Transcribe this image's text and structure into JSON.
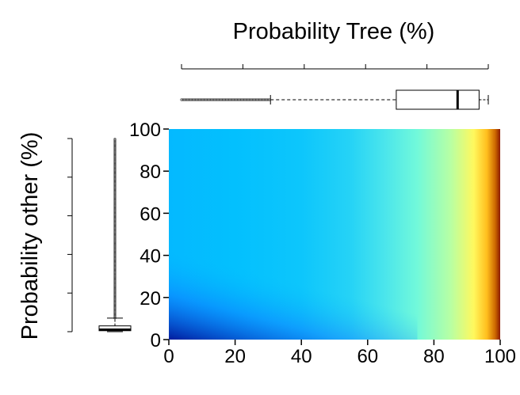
{
  "chart_data": {
    "type": "heatmap",
    "title": "",
    "xlabel": "Probability Tree (%)",
    "ylabel": "Probability other (%)",
    "xlim": [
      0,
      100
    ],
    "ylim": [
      0,
      100
    ],
    "x_ticks": [
      "0",
      "20",
      "40",
      "60",
      "80",
      "100"
    ],
    "y_ticks": [
      "0",
      "20",
      "40",
      "60",
      "80",
      "100"
    ],
    "x_tick_values": [
      0,
      20,
      40,
      60,
      80,
      100
    ],
    "y_tick_values": [
      0,
      20,
      40,
      60,
      80,
      100
    ],
    "grid": false,
    "colormap": [
      "#00008b",
      "#0000ff",
      "#1e90ff",
      "#00bfff",
      "#40e0f0",
      "#7fffd4",
      "#ffff66",
      "#ffa500",
      "#8b1a00"
    ],
    "x_color_stops": [
      {
        "x": 0,
        "level": 0.36
      },
      {
        "x": 20,
        "level": 0.38
      },
      {
        "x": 40,
        "level": 0.4
      },
      {
        "x": 55,
        "level": 0.45
      },
      {
        "x": 65,
        "level": 0.52
      },
      {
        "x": 75,
        "level": 0.6
      },
      {
        "x": 85,
        "level": 0.68
      },
      {
        "x": 92,
        "level": 0.76
      },
      {
        "x": 96,
        "level": 0.84
      },
      {
        "x": 98.5,
        "level": 0.93
      },
      {
        "x": 100,
        "level": 1.0
      }
    ],
    "bottom_left_level": 0.0,
    "top_boxplot": {
      "variable": "Probability Tree (%)",
      "axis_range": [
        0,
        100
      ],
      "axis_ticks": [
        0,
        20,
        40,
        60,
        80,
        100
      ],
      "whisker_low": 29,
      "q1": 70,
      "median": 90,
      "q3": 97,
      "whisker_high": 100,
      "outlier_range": [
        0,
        29
      ]
    },
    "left_boxplot": {
      "variable": "Probability other (%)",
      "axis_range": [
        0,
        100
      ],
      "axis_ticks": [
        0,
        20,
        40,
        60,
        80,
        100
      ],
      "whisker_low": 0,
      "q1": 0.5,
      "median": 1,
      "q3": 3,
      "whisker_high": 7,
      "outlier_range": [
        7,
        100
      ]
    }
  }
}
